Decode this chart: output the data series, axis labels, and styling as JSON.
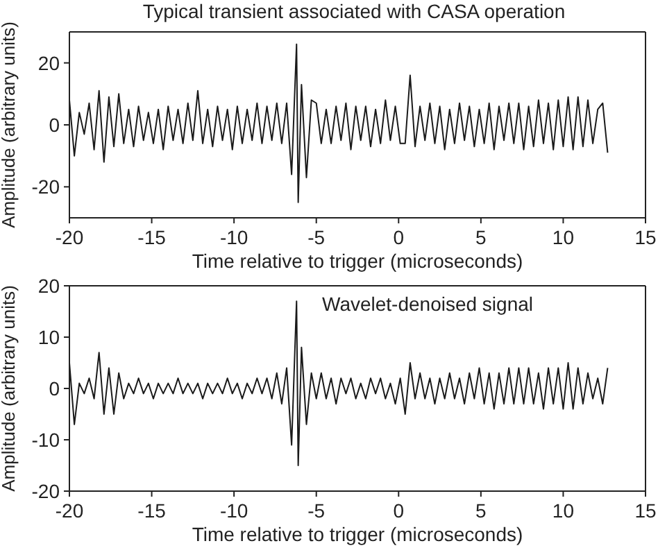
{
  "chart_data": [
    {
      "type": "line",
      "title": "Typical transient associated with CASA operation",
      "xlabel": "Time relative to trigger (microseconds)",
      "ylabel": "Amplitude (arbitrary units)",
      "x": [
        -20,
        -19.7,
        -19.4,
        -19.1,
        -18.8,
        -18.5,
        -18.2,
        -17.9,
        -17.6,
        -17.3,
        -17,
        -16.7,
        -16.4,
        -16.1,
        -15.8,
        -15.5,
        -15.2,
        -14.9,
        -14.6,
        -14.3,
        -14,
        -13.7,
        -13.4,
        -13.1,
        -12.8,
        -12.5,
        -12.2,
        -11.9,
        -11.6,
        -11.3,
        -11,
        -10.7,
        -10.4,
        -10.1,
        -9.8,
        -9.5,
        -9.2,
        -8.9,
        -8.6,
        -8.3,
        -8,
        -7.7,
        -7.4,
        -7.1,
        -6.8,
        -6.5,
        -6.2,
        -6.1,
        -5.9,
        -5.6,
        -5.3,
        -5,
        -4.7,
        -4.4,
        -4.1,
        -3.8,
        -3.5,
        -3.2,
        -2.9,
        -2.6,
        -2.3,
        -2,
        -1.7,
        -1.4,
        -1.1,
        -0.8,
        -0.5,
        -0.2,
        0.1,
        0.4,
        0.7,
        1,
        1.3,
        1.6,
        1.9,
        2.2,
        2.5,
        2.8,
        3.1,
        3.4,
        3.7,
        4,
        4.3,
        4.6,
        4.9,
        5.2,
        5.5,
        5.8,
        6.1,
        6.4,
        6.7,
        7,
        7.3,
        7.6,
        7.9,
        8.2,
        8.5,
        8.8,
        9.1,
        9.4,
        9.7,
        10,
        10.3,
        10.6,
        10.9,
        11.2,
        11.5,
        11.8,
        12.1,
        12.4,
        12.7
      ],
      "series": [
        {
          "color": "#1a1a1a",
          "values": [
            8,
            -10,
            4,
            -3,
            7,
            -8,
            11,
            -12,
            9,
            -7,
            10,
            -6,
            5,
            -7,
            6,
            -5,
            4,
            -6,
            5,
            -8,
            6,
            -5,
            5,
            -6,
            7,
            -5,
            11,
            -6,
            5,
            -7,
            6,
            -5,
            5,
            -8,
            6,
            -6,
            5,
            -5,
            7,
            -6,
            6,
            -5,
            7,
            -6,
            7,
            -16,
            26,
            -25,
            13,
            -17,
            8,
            7,
            -6,
            5,
            -6,
            6,
            -5,
            7,
            -8,
            6,
            -5,
            6,
            -7,
            5,
            -6,
            8,
            -5,
            6,
            -6,
            -6,
            16,
            -7,
            6,
            -5,
            7,
            -6,
            6,
            -8,
            5,
            -6,
            7,
            -5,
            6,
            -7,
            5,
            -6,
            7,
            -8,
            6,
            -5,
            7,
            -6,
            7,
            -8,
            6,
            -7,
            8,
            -6,
            7,
            -8,
            8,
            -7,
            9,
            -8,
            9,
            -7,
            8,
            -6,
            5,
            7,
            -9
          ]
        }
      ],
      "xlim": [
        -20,
        15
      ],
      "xticks": [
        -20,
        -15,
        -10,
        -5,
        0,
        5,
        10,
        15
      ],
      "ylim": [
        -30,
        30
      ],
      "yticks": [
        -20,
        0,
        20
      ],
      "grid": false,
      "marker": "none",
      "line_style": "solid"
    },
    {
      "type": "line",
      "xlabel": "Time relative to trigger (microseconds)",
      "ylabel": "Amplitude (arbitrary units)",
      "annotations": [
        "Wavelet-denoised signal"
      ],
      "x": [
        -20,
        -19.7,
        -19.4,
        -19.1,
        -18.8,
        -18.5,
        -18.2,
        -17.9,
        -17.6,
        -17.3,
        -17,
        -16.7,
        -16.4,
        -16.1,
        -15.8,
        -15.5,
        -15.2,
        -14.9,
        -14.6,
        -14.3,
        -14,
        -13.7,
        -13.4,
        -13.1,
        -12.8,
        -12.5,
        -12.2,
        -11.9,
        -11.6,
        -11.3,
        -11,
        -10.7,
        -10.4,
        -10.1,
        -9.8,
        -9.5,
        -9.2,
        -8.9,
        -8.6,
        -8.3,
        -8,
        -7.7,
        -7.4,
        -7.1,
        -6.8,
        -6.5,
        -6.2,
        -6.1,
        -5.9,
        -5.6,
        -5.3,
        -5,
        -4.7,
        -4.4,
        -4.1,
        -3.8,
        -3.5,
        -3.2,
        -2.9,
        -2.6,
        -2.3,
        -2,
        -1.7,
        -1.4,
        -1.1,
        -0.8,
        -0.5,
        -0.2,
        0.1,
        0.4,
        0.7,
        1,
        1.3,
        1.6,
        1.9,
        2.2,
        2.5,
        2.8,
        3.1,
        3.4,
        3.7,
        4,
        4.3,
        4.6,
        4.9,
        5.2,
        5.5,
        5.8,
        6.1,
        6.4,
        6.7,
        7,
        7.3,
        7.6,
        7.9,
        8.2,
        8.5,
        8.8,
        9.1,
        9.4,
        9.7,
        10,
        10.3,
        10.6,
        10.9,
        11.2,
        11.5,
        11.8,
        12.1,
        12.4,
        12.7
      ],
      "series": [
        {
          "color": "#1a1a1a",
          "values": [
            5,
            -7,
            1,
            -1,
            2,
            -2,
            7,
            -5,
            4,
            -5,
            3,
            -2,
            1,
            -1,
            2,
            -1,
            1,
            -2,
            1,
            -1,
            1,
            -1,
            2,
            -1,
            1,
            -1,
            1,
            -2,
            1,
            -1,
            1,
            -1,
            2,
            -1,
            1,
            -2,
            1,
            -1,
            2,
            -1,
            2,
            -2,
            3,
            -3,
            4,
            -11,
            17,
            -15,
            8,
            -7,
            3,
            -2,
            3,
            -2,
            2,
            -3,
            2,
            -1,
            2,
            -2,
            1,
            -2,
            2,
            -1,
            2,
            -2,
            1,
            -3,
            2,
            -5,
            5,
            -2,
            3,
            -2,
            2,
            -3,
            2,
            -2,
            3,
            -2,
            2,
            -3,
            3,
            -2,
            4,
            -3,
            3,
            -4,
            3,
            -3,
            4,
            -3,
            4,
            -3,
            4,
            -3,
            3,
            -4,
            4,
            -3,
            4,
            -4,
            5,
            -4,
            4,
            -3,
            3,
            -2,
            2,
            -3,
            4
          ]
        }
      ],
      "xlim": [
        -20,
        15
      ],
      "xticks": [
        -20,
        -15,
        -10,
        -5,
        0,
        5,
        10,
        15
      ],
      "ylim": [
        -20,
        20
      ],
      "yticks": [
        -20,
        -10,
        0,
        10,
        20
      ],
      "grid": false,
      "marker": "none",
      "line_style": "solid"
    }
  ]
}
